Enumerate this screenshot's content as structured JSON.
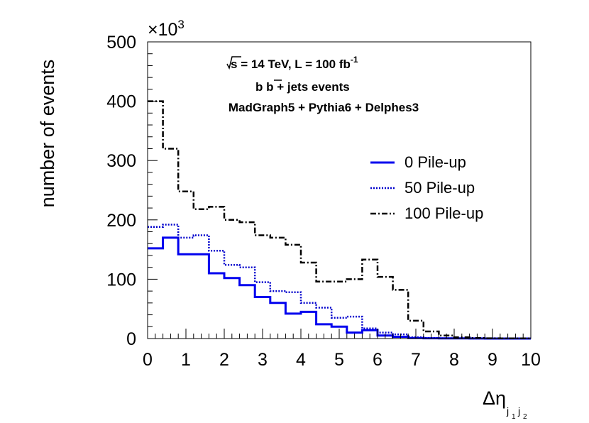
{
  "chart_data": {
    "type": "histogram",
    "xlabel": "Δη",
    "xlabel_sub": [
      "j",
      "1",
      "j",
      "2"
    ],
    "ylabel": "number of events",
    "y_multiplier": "×10",
    "y_multiplier_exp": "3",
    "xlim": [
      0,
      10
    ],
    "ylim": [
      0,
      500
    ],
    "x_ticks": [
      "0",
      "1",
      "2",
      "3",
      "4",
      "5",
      "6",
      "7",
      "8",
      "9",
      "10"
    ],
    "y_ticks": [
      "0",
      "100",
      "200",
      "300",
      "400",
      "500"
    ],
    "bin_edges": [
      0,
      0.4,
      0.8,
      1.2,
      1.6,
      2.0,
      2.4,
      2.8,
      3.2,
      3.6,
      4.0,
      4.4,
      4.8,
      5.2,
      5.6,
      6.0,
      6.4,
      6.8,
      7.2,
      7.6,
      8.0,
      8.4,
      8.8,
      9.2,
      9.6,
      10.0
    ],
    "series": [
      {
        "name": "0  Pile-up",
        "color": "#0000ee",
        "style": "solid",
        "values": [
          152,
          170,
          142,
          142,
          110,
          102,
          90,
          70,
          60,
          42,
          45,
          24,
          20,
          10,
          14,
          5,
          3,
          1,
          0.5,
          0.3,
          0.2,
          0.1,
          0,
          0,
          0
        ]
      },
      {
        "name": "50 Pile-up",
        "color": "#0000cc",
        "style": "dotted",
        "values": [
          188,
          192,
          170,
          174,
          148,
          124,
          120,
          95,
          80,
          78,
          60,
          52,
          35,
          37,
          17,
          10,
          7,
          2,
          1,
          0.5,
          0.3,
          0.1,
          0,
          0,
          0
        ]
      },
      {
        "name": "100 Pile-up",
        "color": "#000000",
        "style": "dashdot",
        "values": [
          400,
          320,
          248,
          218,
          222,
          200,
          196,
          174,
          170,
          158,
          128,
          96,
          96,
          100,
          133,
          104,
          82,
          30,
          12,
          5,
          2,
          1,
          0.5,
          0.3,
          0.2
        ]
      }
    ],
    "annotations": {
      "energy_sqrt": "s",
      "energy_rest": " = 14 TeV, L = 100 fb",
      "energy_exp": "-1",
      "process_b": "b  ",
      "process_bbar": "b",
      "process_rest": " + jets events",
      "generators": "MadGraph5 + Pythia6 + Delphes3"
    },
    "legend_position": "middle-right"
  }
}
